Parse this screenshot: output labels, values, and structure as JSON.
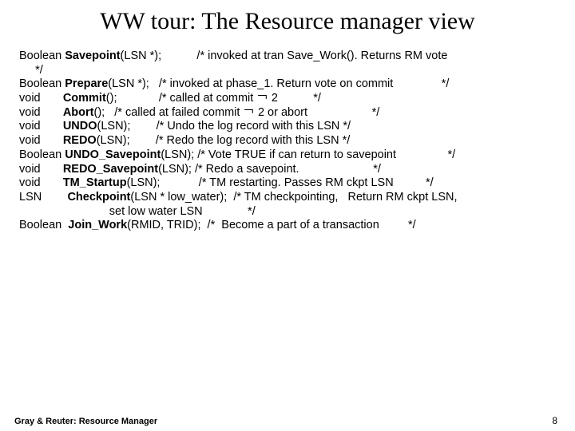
{
  "title": "WW tour: The Resource manager view",
  "title_fontsize": 30,
  "lines": [
    "Boolean <b>Savepoint</b>(LSN *);           /* invoked at tran Save_Work(). Returns RM vote",
    "     */",
    "Boolean <b>Prepare</b>(LSN *);   /* invoked at phase_1. Return vote on commit               */",
    "void       <b>Commit</b>();             /* called at commit ￢ 2           */",
    "void       <b>Abort</b>();   /* called at failed commit ￢ 2 or abort                    */",
    "",
    "void       <b>UNDO</b>(LSN);        /* Undo the log record with this LSN */",
    "void       <b>REDO</b>(LSN);        /* Redo the log record with this LSN */",
    "Boolean <b>UNDO_Savepoint</b>(LSN); /* Vote TRUE if can return to savepoint                */",
    "void       <b>REDO_Savepoint</b>(LSN); /* Redo a savepoint.                       */",
    "",
    "void       <b>TM_Startup</b>(LSN);            /* TM restarting. Passes RM ckpt LSN          */",
    "LSN        <b>Checkpoint</b>(LSN * low_water);  /* TM checkpointing,   Return RM ckpt LSN,",
    "                            set low water LSN              */",
    "Boolean  <b>Join_Work</b>(RMID, TRID);  /*  Become a part of a transaction         */"
  ],
  "footer": "Gray & Reuter: Resource Manager",
  "page": "8",
  "colors": {
    "background": "#ffffff",
    "text": "#000000"
  },
  "typography": {
    "title_family": "Times New Roman",
    "body_family": "Arial",
    "body_fontsize": 14.5,
    "footer_fontsize": 11
  }
}
